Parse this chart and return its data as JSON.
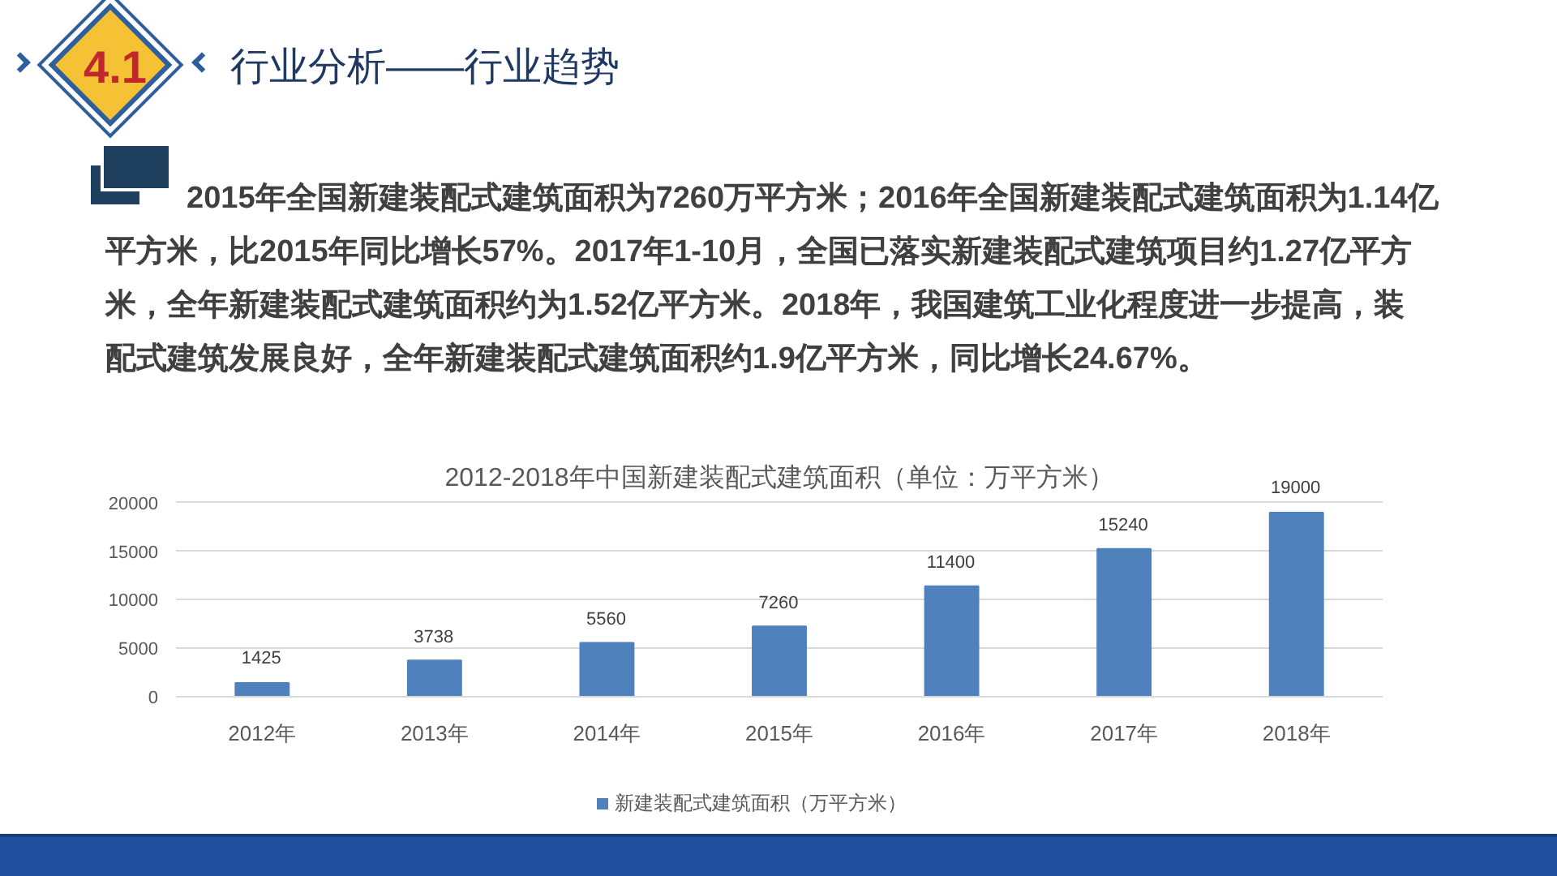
{
  "chart_data": {
    "type": "bar",
    "title": "2012-2018年中国新建装配式建筑面积（单位：万平方米）",
    "annotations": [
      "4.1",
      "行业分析——行业趋势",
      "2015年全国新建装配式建筑面积为7260万平方米；2016年全国新建装配式建筑面积为1.14亿平方米，比2015年同比增长57%。2017年1-10月，全国已落实新建装配式建筑项目约1.27亿平方米，全年新建装配式建筑面积约为1.52亿平方米。2018年，我国建筑工业化程度进一步提高，装配式建筑发展良好，全年新建装配式建筑面积约1.9亿平方米，同比增长24.67%。"
    ],
    "categories": [
      "2012年",
      "2013年",
      "2014年",
      "2015年",
      "2016年",
      "2017年",
      "2018年"
    ],
    "series": [
      {
        "name": "新建装配式建筑面积（万平方米）",
        "color": "#4f81bd",
        "values": [
          1425,
          3738,
          5560,
          7260,
          11400,
          15240,
          19000
        ]
      }
    ],
    "ylim": [
      0,
      20000
    ],
    "yticks": [
      0,
      5000,
      10000,
      15000,
      20000
    ],
    "grid": "y",
    "legend": "bottom",
    "data_labels": true
  }
}
